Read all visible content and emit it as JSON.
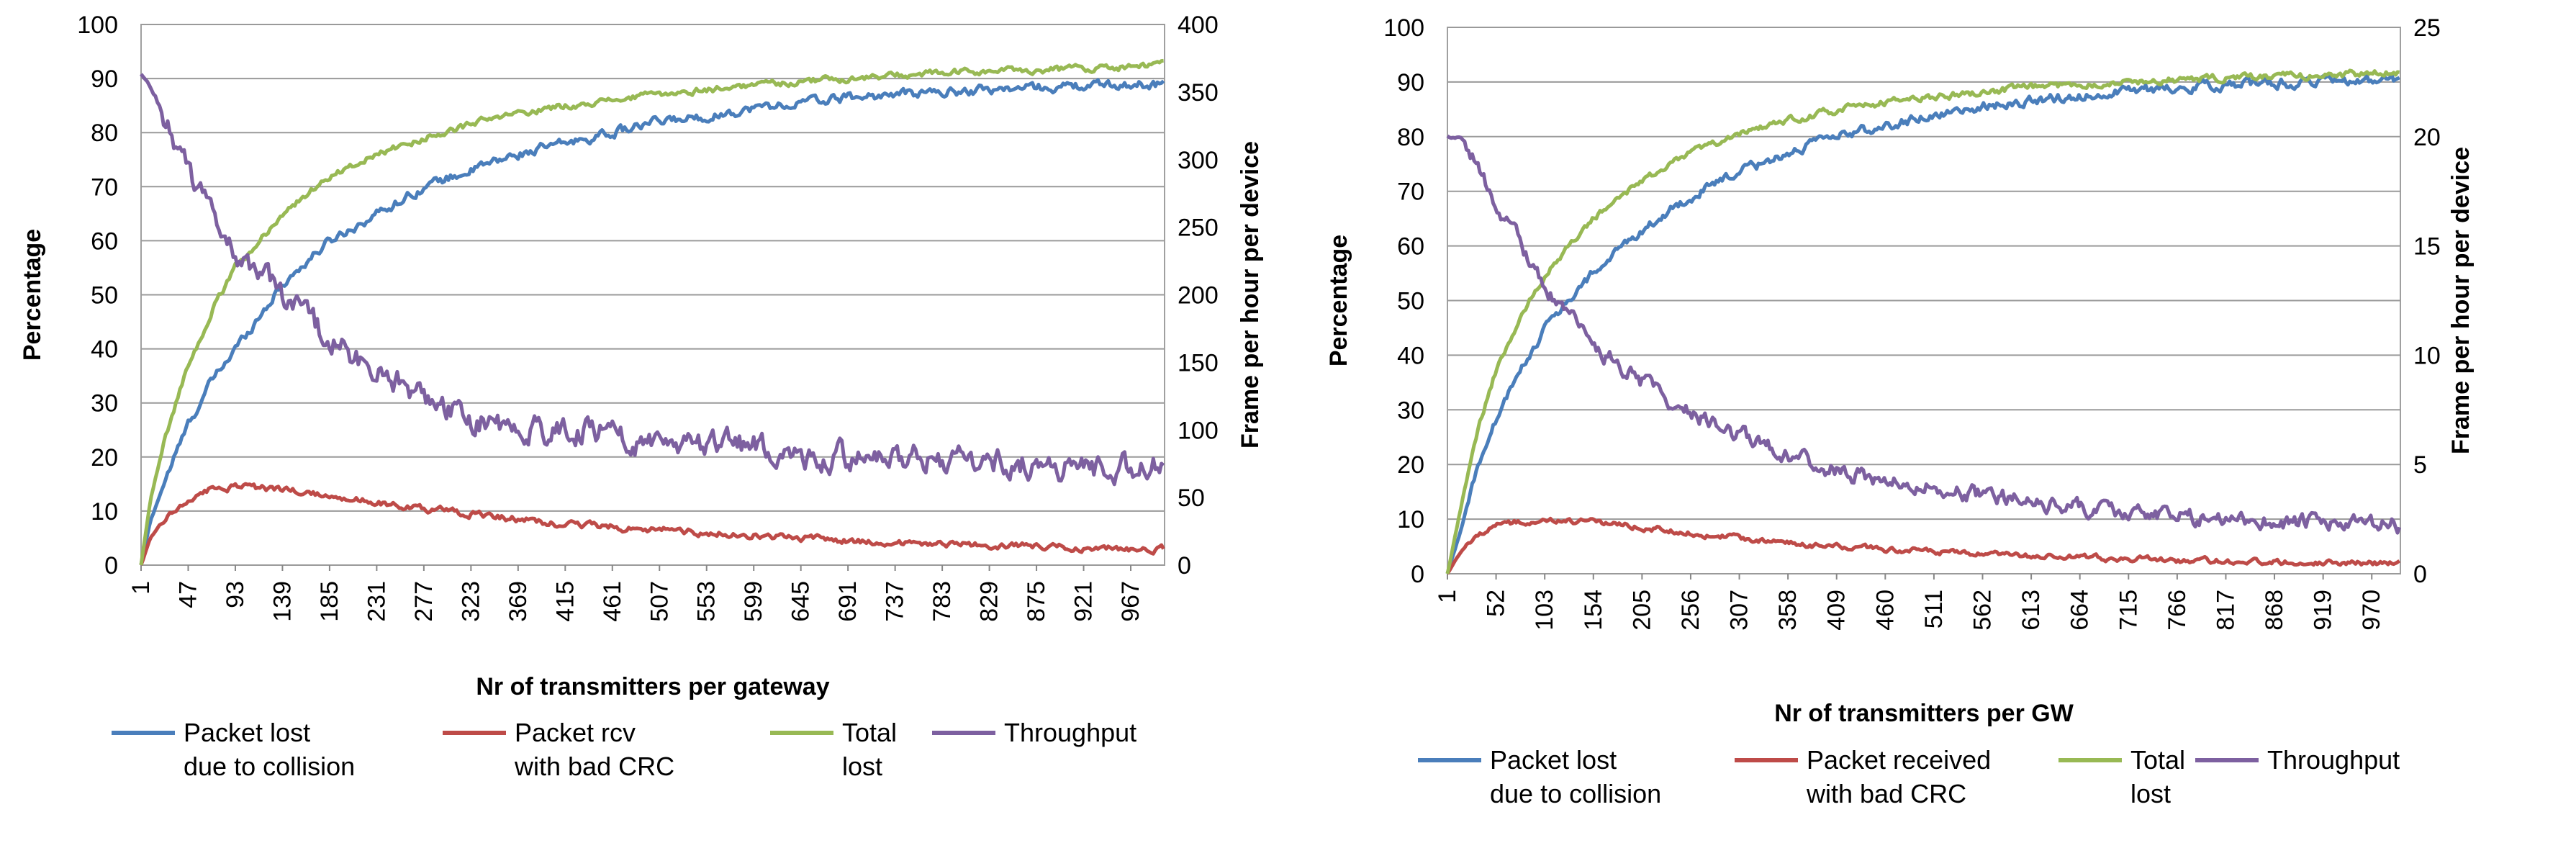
{
  "chart_data": [
    {
      "type": "line",
      "xlabel": "Nr of transmitters per gateway",
      "ylabel": "Percentage",
      "y2label": "Frame per hour per device",
      "ylim": [
        0,
        100
      ],
      "y2lim": [
        0,
        400
      ],
      "yticks": [
        "0",
        "10",
        "20",
        "30",
        "40",
        "50",
        "60",
        "70",
        "80",
        "90",
        "100"
      ],
      "y2ticks": [
        "0",
        "50",
        "100",
        "150",
        "200",
        "250",
        "300",
        "350",
        "400"
      ],
      "xrange": [
        1,
        1000
      ],
      "xticks": [
        "1",
        "47",
        "93",
        "139",
        "185",
        "231",
        "277",
        "323",
        "369",
        "415",
        "461",
        "507",
        "553",
        "599",
        "645",
        "691",
        "737",
        "783",
        "829",
        "875",
        "921",
        "967"
      ],
      "grid": true,
      "legend_position": "bottom",
      "series": [
        {
          "name": "Packet lost due to collision",
          "legend_lines": [
            "Packet lost",
            "due to collision"
          ],
          "color": "#4a7ebb",
          "axis": "left",
          "x": [
            1,
            10,
            25,
            47,
            70,
            93,
            139,
            185,
            231,
            277,
            323,
            369,
            415,
            461,
            507,
            553,
            599,
            645,
            691,
            737,
            783,
            829,
            875,
            921,
            967,
            1000
          ],
          "values": [
            0,
            8,
            16,
            26,
            34,
            40,
            52,
            60,
            65,
            70,
            73,
            76,
            78,
            80,
            82,
            83,
            84.5,
            85.5,
            86.5,
            87,
            87.5,
            88,
            88.3,
            88.6,
            88.9,
            89
          ]
        },
        {
          "name": "Packet rcv with bad CRC",
          "legend_lines": [
            "Packet rcv",
            "with bad CRC"
          ],
          "color": "#be4b48",
          "axis": "left",
          "x": [
            1,
            10,
            25,
            47,
            70,
            93,
            139,
            185,
            231,
            277,
            323,
            369,
            415,
            461,
            507,
            553,
            599,
            645,
            691,
            737,
            783,
            829,
            875,
            921,
            967,
            1000
          ],
          "values": [
            0,
            5,
            9,
            12,
            14,
            14.5,
            14,
            13,
            11.5,
            10.5,
            9.5,
            8.5,
            7.5,
            7,
            6.5,
            6,
            5.5,
            5,
            4.5,
            4.2,
            4,
            3.7,
            3.5,
            3.2,
            3,
            2.9
          ]
        },
        {
          "name": "Total lost",
          "legend_lines": [
            "Total",
            "lost"
          ],
          "color": "#98b954",
          "axis": "left",
          "x": [
            1,
            10,
            25,
            47,
            70,
            93,
            139,
            185,
            231,
            277,
            323,
            369,
            415,
            461,
            507,
            553,
            599,
            645,
            691,
            737,
            783,
            829,
            875,
            921,
            967,
            1000
          ],
          "values": [
            0,
            12,
            24,
            37,
            47,
            55,
            65,
            72,
            76,
            79,
            81.5,
            83.5,
            85,
            86,
            87,
            88,
            88.8,
            89.5,
            90,
            90.5,
            91,
            91.3,
            91.6,
            91.9,
            92.2,
            92.5
          ]
        },
        {
          "name": "Throughput",
          "legend_lines": [
            "Throughput"
          ],
          "color": "#7d60a0",
          "axis": "right",
          "x": [
            1,
            10,
            25,
            47,
            70,
            93,
            139,
            185,
            231,
            277,
            323,
            369,
            415,
            461,
            507,
            553,
            599,
            645,
            691,
            737,
            783,
            829,
            875,
            921,
            967,
            1000
          ],
          "values": [
            362,
            355,
            330,
            290,
            260,
            230,
            200,
            165,
            145,
            125,
            110,
            100,
            100,
            98,
            88,
            86,
            90,
            82,
            80,
            78,
            78,
            76,
            74,
            72,
            73,
            72
          ]
        }
      ]
    },
    {
      "type": "line",
      "xlabel": "Nr of transmitters per GW",
      "ylabel": "Percentage",
      "y2label": "Frame per hour per device",
      "ylim": [
        0,
        100
      ],
      "y2lim": [
        0,
        25
      ],
      "yticks": [
        "0",
        "10",
        "20",
        "30",
        "40",
        "50",
        "60",
        "70",
        "80",
        "90",
        "100"
      ],
      "y2ticks": [
        "0",
        "5",
        "10",
        "15",
        "20",
        "25"
      ],
      "xrange": [
        1,
        1000
      ],
      "xticks": [
        "1",
        "52",
        "103",
        "154",
        "205",
        "256",
        "307",
        "358",
        "409",
        "460",
        "511",
        "562",
        "613",
        "664",
        "715",
        "766",
        "817",
        "868",
        "919",
        "970"
      ],
      "grid": true,
      "legend_position": "bottom",
      "series": [
        {
          "name": "Packet lost due to collision",
          "legend_lines": [
            "Packet lost",
            "due to collision"
          ],
          "color": "#4a7ebb",
          "axis": "left",
          "x": [
            1,
            15,
            30,
            52,
            80,
            103,
            154,
            205,
            256,
            307,
            358,
            409,
            460,
            511,
            562,
            613,
            664,
            715,
            766,
            817,
            868,
            919,
            970,
            1000
          ],
          "values": [
            0,
            8,
            18,
            28,
            38,
            45,
            55,
            63,
            69,
            73.5,
            77,
            80,
            82,
            84,
            85.5,
            86.5,
            87.5,
            88.3,
            89,
            89.5,
            89.8,
            90,
            90.2,
            90.3
          ]
        },
        {
          "name": "Packet received with bad CRC",
          "legend_lines": [
            "Packet received",
            "with bad CRC"
          ],
          "color": "#be4b48",
          "axis": "left",
          "x": [
            1,
            15,
            30,
            52,
            80,
            103,
            154,
            205,
            256,
            307,
            358,
            409,
            460,
            511,
            562,
            613,
            664,
            715,
            766,
            817,
            868,
            919,
            970,
            1000
          ],
          "values": [
            0,
            4,
            7,
            9,
            9.5,
            10,
            9.5,
            8.5,
            7.5,
            6.5,
            5.5,
            5,
            4.5,
            4,
            3.5,
            3.2,
            3,
            2.7,
            2.5,
            2.3,
            2.2,
            2.1,
            2,
            2
          ]
        },
        {
          "name": "Total lost",
          "legend_lines": [
            "Total",
            "lost"
          ],
          "color": "#98b954",
          "axis": "left",
          "x": [
            1,
            15,
            30,
            52,
            80,
            103,
            154,
            205,
            256,
            307,
            358,
            409,
            460,
            511,
            562,
            613,
            664,
            715,
            766,
            817,
            868,
            919,
            970,
            1000
          ],
          "values": [
            0,
            12,
            25,
            37,
            48,
            55,
            65,
            72,
            77,
            80.5,
            83,
            84.8,
            86.2,
            87.3,
            88.2,
            89,
            89.6,
            90,
            90.4,
            90.7,
            91,
            91.2,
            91.5,
            91.7
          ]
        },
        {
          "name": "Throughput",
          "legend_lines": [
            "Throughput"
          ],
          "color": "#7d60a0",
          "axis": "right",
          "x": [
            1,
            15,
            30,
            52,
            80,
            103,
            154,
            205,
            256,
            307,
            358,
            409,
            460,
            511,
            562,
            613,
            664,
            715,
            766,
            817,
            868,
            919,
            970,
            1000
          ],
          "values": [
            20,
            20,
            19,
            17,
            15,
            13,
            10.5,
            8.8,
            7.4,
            6.4,
            5.5,
            4.7,
            4.2,
            3.9,
            3.6,
            3.3,
            3.0,
            2.8,
            2.6,
            2.5,
            2.4,
            2.3,
            2.2,
            2.2
          ]
        }
      ]
    }
  ]
}
